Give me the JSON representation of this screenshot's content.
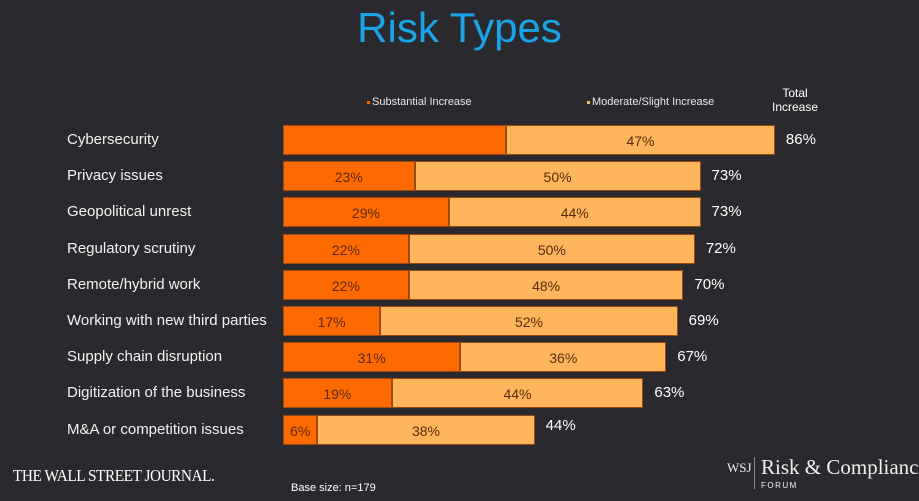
{
  "chart_data": {
    "type": "bar",
    "orientation": "horizontal",
    "stacked": true,
    "title": "Risk Types",
    "categories": [
      "Cybersecurity",
      "Privacy issues",
      "Geopolitical unrest",
      "Regulatory scrutiny",
      "Remote/hybrid work",
      "Working with new third parties",
      "Supply chain disruption",
      "Digitization of the business",
      "M&A or competition issues"
    ],
    "series": [
      {
        "name": "Substantial Increase",
        "color": "#ff6a00",
        "values": [
          39,
          23,
          29,
          22,
          22,
          17,
          31,
          19,
          6
        ],
        "labels": [
          "",
          "23%",
          "29%",
          "22%",
          "22%",
          "17%",
          "31%",
          "19%",
          "6%"
        ]
      },
      {
        "name": "Moderate/Slight Increase",
        "color": "#ffb55c",
        "values": [
          47,
          50,
          44,
          50,
          48,
          52,
          36,
          44,
          38
        ],
        "labels": [
          "47%",
          "50%",
          "44%",
          "50%",
          "48%",
          "52%",
          "36%",
          "44%",
          "38%"
        ]
      }
    ],
    "total_header": "Total Increase",
    "totals": [
      "86%",
      "73%",
      "73%",
      "72%",
      "70%",
      "69%",
      "67%",
      "63%",
      "44%"
    ],
    "grid": false,
    "legend_position": "top"
  },
  "footer": {
    "source_logo": "THE WALL STREET JOURNAL.",
    "base_size": "Base size: n=179",
    "brand_wsj": "WSJ",
    "brand_name": "Risk & Compliance",
    "brand_sub": "FORUM"
  }
}
